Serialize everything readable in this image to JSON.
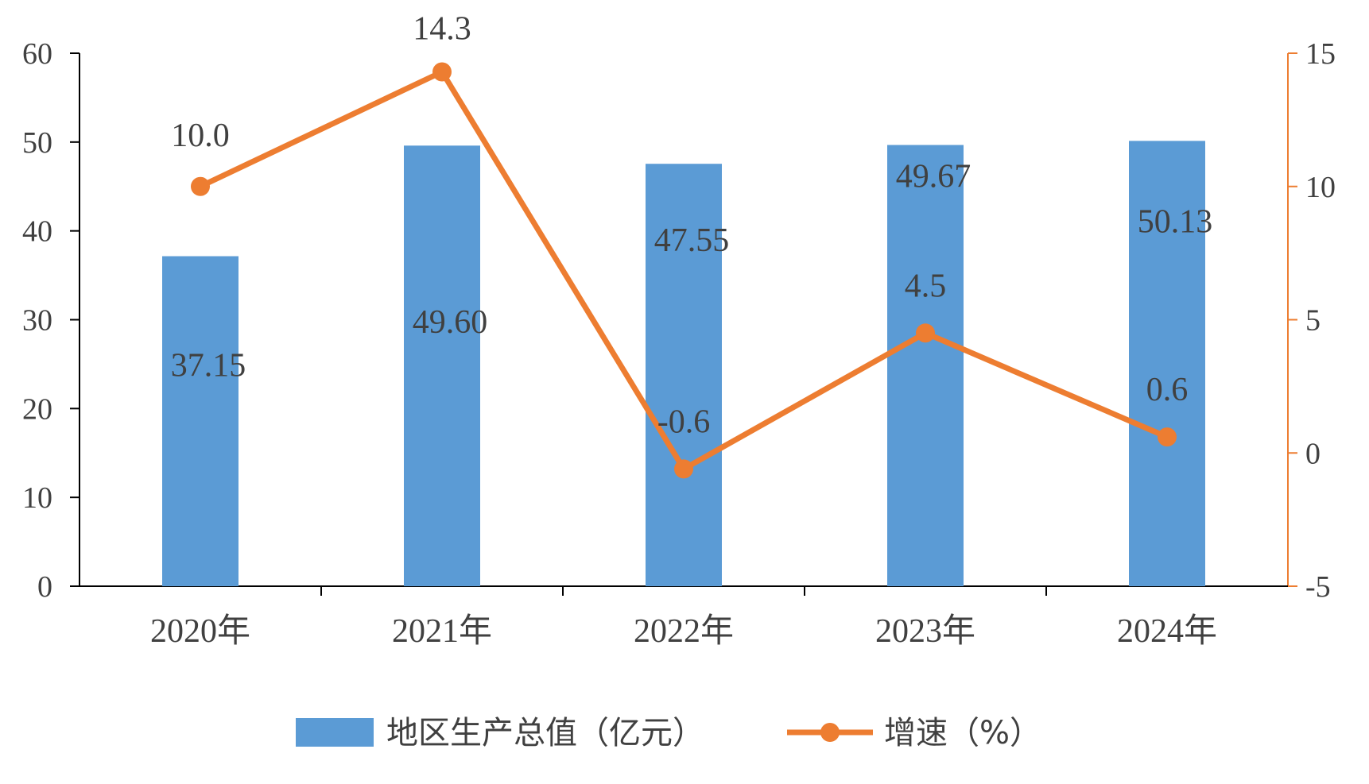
{
  "chart_data": {
    "type": "bar+line",
    "categories": [
      "2020年",
      "2021年",
      "2022年",
      "2023年",
      "2024年"
    ],
    "series": [
      {
        "name": "地区生产总值（亿元）",
        "type": "bar",
        "axis": "left",
        "values": [
          37.15,
          49.6,
          47.55,
          49.67,
          50.13
        ],
        "labels": [
          "37.15",
          "49.60",
          "47.55",
          "49.67",
          "50.13"
        ],
        "color": "#5b9bd5"
      },
      {
        "name": "增速（%）",
        "type": "line",
        "axis": "right",
        "values": [
          10.0,
          14.3,
          -0.6,
          4.5,
          0.6
        ],
        "labels": [
          "10.0",
          "14.3",
          "-0.6",
          "4.5",
          "0.6"
        ],
        "color": "#ed7d31"
      }
    ],
    "y_left": {
      "ylim": [
        0,
        60
      ],
      "ticks": [
        "0",
        "10",
        "20",
        "30",
        "40",
        "50",
        "60"
      ],
      "color": "#000000"
    },
    "y_right": {
      "ylim": [
        -5,
        15
      ],
      "ticks": [
        "-5",
        "0",
        "5",
        "10",
        "15"
      ],
      "color": "#ed7d31"
    },
    "legend": {
      "position": "bottom"
    },
    "grid": false
  }
}
